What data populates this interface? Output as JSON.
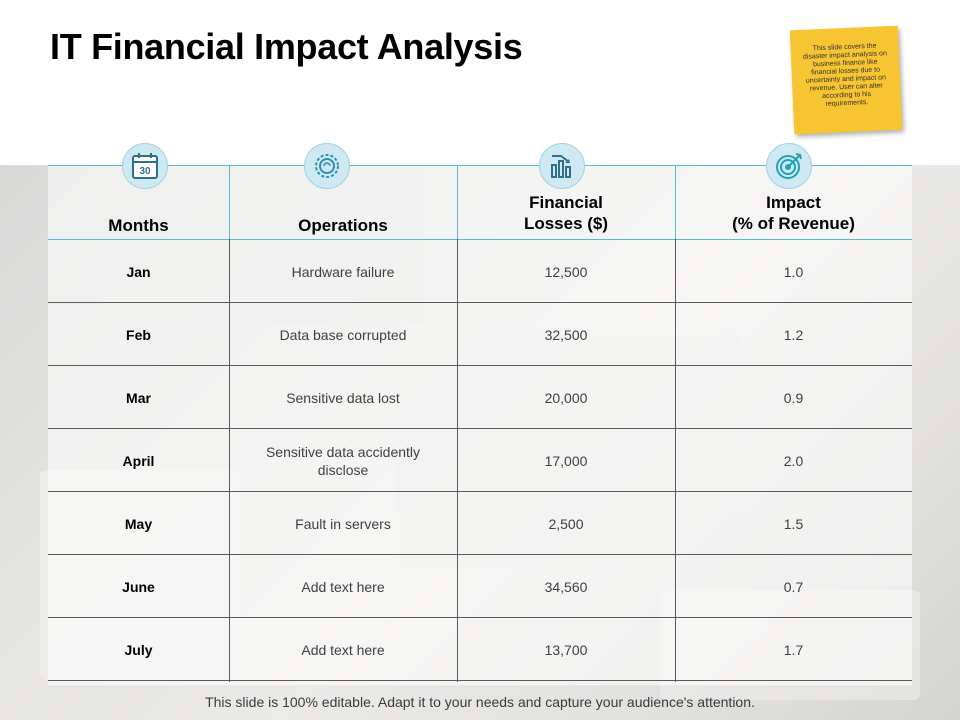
{
  "title": "IT Financial Impact Analysis",
  "sticky_note": "This slide covers the disaster impact analysis on business finance like financial losses due to uncertainty and impact on revenue. User can alter according to his requirements.",
  "columns": [
    {
      "label": "Months",
      "icon": "calendar-icon",
      "icon_text": "30"
    },
    {
      "label": "Operations",
      "icon": "gear-icon"
    },
    {
      "label": "Financial\nLosses ($)",
      "icon": "bar-chart-icon"
    },
    {
      "label": "Impact\n(% of Revenue)",
      "icon": "target-icon"
    }
  ],
  "rows": [
    {
      "month": "Jan",
      "operation": "Hardware failure",
      "loss": "12,500",
      "impact": "1.0"
    },
    {
      "month": "Feb",
      "operation": "Data base corrupted",
      "loss": "32,500",
      "impact": "1.2"
    },
    {
      "month": "Mar",
      "operation": "Sensitive data lost",
      "loss": "20,000",
      "impact": "0.9"
    },
    {
      "month": "April",
      "operation": "Sensitive data accidently disclose",
      "loss": "17,000",
      "impact": "2.0"
    },
    {
      "month": "May",
      "operation": "Fault in servers",
      "loss": "2,500",
      "impact": "1.5"
    },
    {
      "month": "June",
      "operation": "Add text here",
      "loss": "34,560",
      "impact": "0.7"
    },
    {
      "month": "July",
      "operation": "Add text here",
      "loss": "13,700",
      "impact": "1.7"
    }
  ],
  "footer": "This slide is 100% editable. Adapt it to your needs and capture your audience's attention.",
  "colors": {
    "accent": "#5bb7d6",
    "icon_bg": "#cfe9f3",
    "sticky": "#f7c531"
  }
}
